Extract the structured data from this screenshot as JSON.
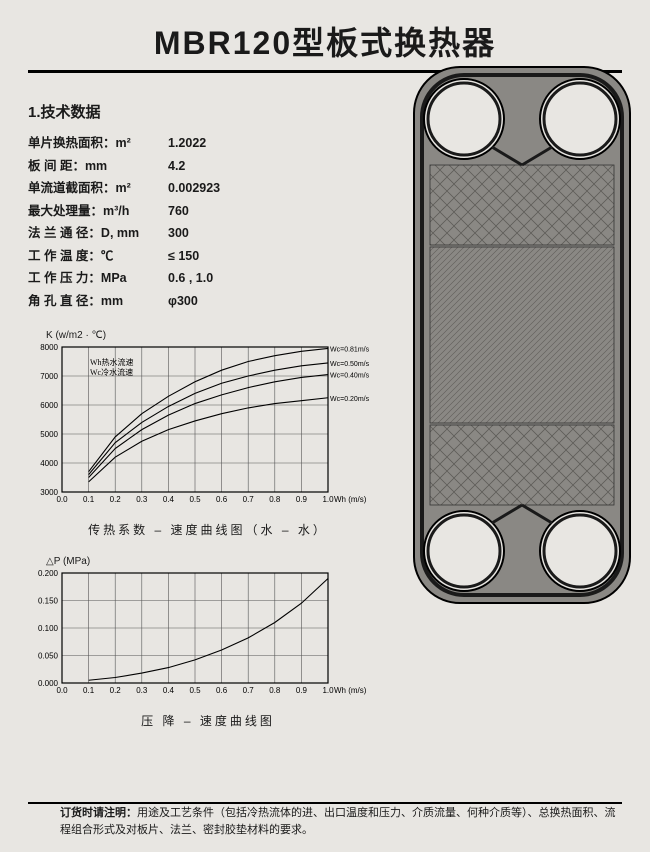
{
  "title": "MBR120型板式换热器",
  "section1": {
    "heading": "1.技术数据"
  },
  "specs": [
    {
      "label": "单片换热面积：m²",
      "value": "1.2022"
    },
    {
      "label": "板   间   距：mm",
      "value": "4.2"
    },
    {
      "label": "单流道截面积：m²",
      "value": "0.002923"
    },
    {
      "label": "最大处理量：m³/h",
      "value": "760"
    },
    {
      "label": "法 兰 通 径：D, mm",
      "value": "300"
    },
    {
      "label": "工 作 温 度：℃",
      "value": "≤ 150"
    },
    {
      "label": "工 作 压 力：MPa",
      "value": "0.6 , 1.0"
    },
    {
      "label": "角 孔 直 径：mm",
      "value": "φ300"
    }
  ],
  "chart1": {
    "ylabel": "K (w/m2 · ℃)",
    "xlabel": "Wh (m/s)",
    "caption": "传热系数 – 速度曲线图（水 – 水）",
    "ylim": [
      3000,
      8000
    ],
    "ytick_step": 1000,
    "xlim": [
      0,
      1.0
    ],
    "xtick_step": 0.1,
    "legend": [
      "Wh热水流速",
      "Wc冷水流速"
    ],
    "curve_labels": [
      "Wc=0.81m/s",
      "Wc=0.50m/s",
      "Wc=0.40m/s",
      "Wc=0.20m/s"
    ],
    "series": [
      {
        "pts": [
          [
            0.1,
            3700
          ],
          [
            0.2,
            4900
          ],
          [
            0.3,
            5700
          ],
          [
            0.4,
            6300
          ],
          [
            0.5,
            6800
          ],
          [
            0.6,
            7200
          ],
          [
            0.7,
            7500
          ],
          [
            0.8,
            7700
          ],
          [
            0.9,
            7850
          ],
          [
            1.0,
            7950
          ]
        ]
      },
      {
        "pts": [
          [
            0.1,
            3600
          ],
          [
            0.2,
            4700
          ],
          [
            0.3,
            5400
          ],
          [
            0.4,
            5950
          ],
          [
            0.5,
            6400
          ],
          [
            0.6,
            6750
          ],
          [
            0.7,
            7000
          ],
          [
            0.8,
            7200
          ],
          [
            0.9,
            7350
          ],
          [
            1.0,
            7450
          ]
        ]
      },
      {
        "pts": [
          [
            0.1,
            3500
          ],
          [
            0.2,
            4500
          ],
          [
            0.3,
            5150
          ],
          [
            0.4,
            5650
          ],
          [
            0.5,
            6050
          ],
          [
            0.6,
            6350
          ],
          [
            0.7,
            6600
          ],
          [
            0.8,
            6800
          ],
          [
            0.9,
            6950
          ],
          [
            1.0,
            7050
          ]
        ]
      },
      {
        "pts": [
          [
            0.1,
            3350
          ],
          [
            0.2,
            4200
          ],
          [
            0.3,
            4750
          ],
          [
            0.4,
            5150
          ],
          [
            0.5,
            5450
          ],
          [
            0.6,
            5700
          ],
          [
            0.7,
            5900
          ],
          [
            0.8,
            6050
          ],
          [
            0.9,
            6150
          ],
          [
            1.0,
            6250
          ]
        ]
      }
    ],
    "grid_color": "#555",
    "bg": "#e8e6e2",
    "line_color": "#000",
    "font_size": 8
  },
  "chart2": {
    "ylabel": "△P (MPa)",
    "xlabel": "Wh (m/s)",
    "caption": "压 降 – 速度曲线图",
    "ylim": [
      0,
      0.2
    ],
    "ytick_step": 0.05,
    "xlim": [
      0,
      1.0
    ],
    "xtick_step": 0.1,
    "series": [
      {
        "pts": [
          [
            0.1,
            0.005
          ],
          [
            0.2,
            0.01
          ],
          [
            0.3,
            0.018
          ],
          [
            0.4,
            0.028
          ],
          [
            0.5,
            0.042
          ],
          [
            0.6,
            0.06
          ],
          [
            0.7,
            0.082
          ],
          [
            0.8,
            0.11
          ],
          [
            0.9,
            0.145
          ],
          [
            1.0,
            0.19
          ]
        ]
      }
    ],
    "grid_color": "#555",
    "bg": "#e8e6e2",
    "line_color": "#000",
    "font_size": 8
  },
  "footnote": {
    "label": "订货时请注明：",
    "text": "用途及工艺条件（包括冷热流体的进、出口温度和压力、介质流量、何种介质等）、总换热面积、流程组合形式及对板片、法兰、密封胶垫材料的要求。"
  },
  "plate": {
    "outer_w": 220,
    "outer_h": 540,
    "corner_hole_r": 40,
    "body_color": "#8a8884",
    "pattern_color": "#5d5b57",
    "gasket_color": "#1a1a1a",
    "bg": "#e8e6e2"
  }
}
